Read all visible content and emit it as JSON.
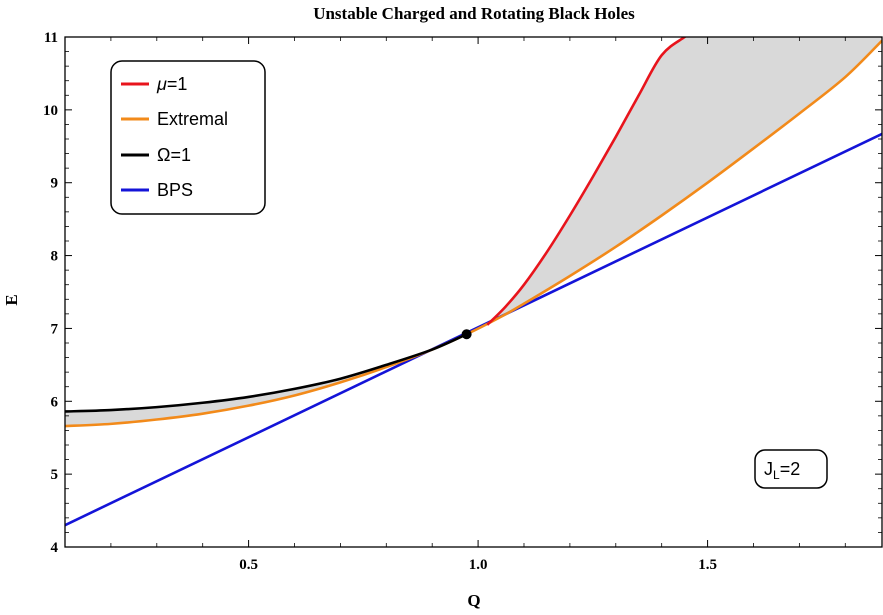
{
  "chart_data": {
    "type": "line",
    "title": "Unstable Charged and Rotating Black Holes",
    "xlabel": "Q",
    "ylabel": "E",
    "xlim": [
      0.1,
      1.88
    ],
    "ylim": [
      4,
      11
    ],
    "xticks": [
      0.5,
      1.0,
      1.5
    ],
    "xtick_labels": [
      "0.5",
      "1.0",
      "1.5"
    ],
    "yticks": [
      4,
      5,
      6,
      7,
      8,
      9,
      10,
      11
    ],
    "ytick_labels": [
      "4",
      "5",
      "6",
      "7",
      "8",
      "9",
      "10",
      "11"
    ],
    "grid": false,
    "legend_position": "top-left",
    "series": [
      {
        "name": "μ=1",
        "color": "#e8141c",
        "x": [
          1.02,
          1.06,
          1.1,
          1.15,
          1.2,
          1.25,
          1.3,
          1.35,
          1.4,
          1.45,
          1.475
        ],
        "y": [
          7.05,
          7.3,
          7.6,
          8.05,
          8.55,
          9.08,
          9.63,
          10.2,
          10.75,
          11.0,
          11.1
        ]
      },
      {
        "name": "Extremal",
        "color": "#f28a1a",
        "x": [
          0.1,
          0.2,
          0.3,
          0.4,
          0.5,
          0.6,
          0.7,
          0.8,
          0.9,
          0.975,
          1.05,
          1.1,
          1.2,
          1.3,
          1.4,
          1.5,
          1.6,
          1.7,
          1.8,
          1.88
        ],
        "y": [
          5.66,
          5.69,
          5.75,
          5.83,
          5.94,
          6.08,
          6.26,
          6.47,
          6.71,
          6.92,
          7.16,
          7.34,
          7.72,
          8.12,
          8.55,
          9.0,
          9.47,
          9.95,
          10.45,
          10.95
        ]
      },
      {
        "name": "Ω=1",
        "color": "#000000",
        "x": [
          0.1,
          0.2,
          0.3,
          0.4,
          0.5,
          0.6,
          0.7,
          0.8,
          0.9,
          0.975
        ],
        "y": [
          5.86,
          5.88,
          5.92,
          5.98,
          6.06,
          6.17,
          6.31,
          6.5,
          6.71,
          6.92
        ]
      },
      {
        "name": "BPS",
        "color": "#1414d8",
        "x": [
          0.1,
          1.88
        ],
        "y": [
          4.3,
          9.67
        ]
      }
    ],
    "shaded_regions": [
      {
        "between": [
          "Ω=1",
          "Extremal"
        ],
        "x_range": [
          0.1,
          0.975
        ],
        "color": "#d9d9d9"
      },
      {
        "between": [
          "μ=1",
          "Extremal"
        ],
        "x_range": [
          1.02,
          1.88
        ],
        "color": "#d9d9d9"
      }
    ],
    "point": {
      "x": 0.975,
      "y": 6.92,
      "color": "#000000"
    },
    "annotation": {
      "text_main": "J",
      "text_sub": "L",
      "text_rest": "=2"
    }
  }
}
